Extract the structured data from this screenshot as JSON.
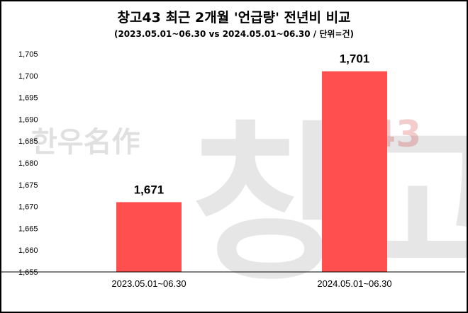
{
  "watermark": {
    "left_text": "한우名作",
    "big_text": "창고",
    "right_text": "43"
  },
  "colors": {
    "bar": "#ff4f4f",
    "axis": "#000000",
    "border": "#000000"
  },
  "chart_data": {
    "type": "bar",
    "title": "창고43 최근 2개월 '언급량' 전년비 비교",
    "subtitle": "(2023.05.01~06.30 vs 2024.05.01~06.30 / 단위=건)",
    "categories": [
      "2023.05.01~06.30",
      "2024.05.01~06.30"
    ],
    "values": [
      1671,
      1701
    ],
    "data_labels": [
      "1,671",
      "1,701"
    ],
    "ylim": [
      1655,
      1705
    ],
    "yticks": [
      1655,
      1660,
      1665,
      1670,
      1675,
      1680,
      1685,
      1690,
      1695,
      1700,
      1705
    ],
    "ytick_labels": [
      "1,655",
      "1,660",
      "1,665",
      "1,670",
      "1,675",
      "1,680",
      "1,685",
      "1,690",
      "1,695",
      "1,700",
      "1,705"
    ],
    "xlabel": "",
    "ylabel": "",
    "grid": false,
    "legend": "none"
  }
}
